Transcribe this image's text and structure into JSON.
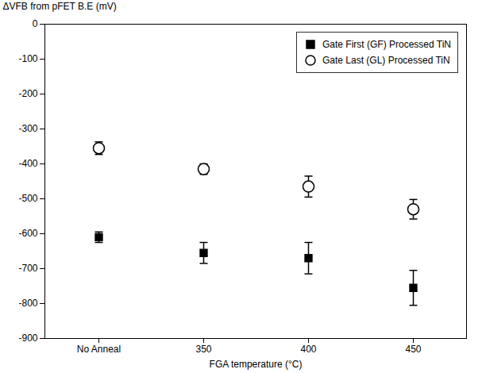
{
  "chart_data": {
    "type": "scatter",
    "xlabel": "FGA temperature (°C)",
    "ylabel": "ΔVFB from pFET B.E (mV)",
    "categories": [
      "No Anneal",
      "350",
      "400",
      "450"
    ],
    "series": [
      {
        "name": "Gate First (GF) Processed TiN",
        "color": "black",
        "marker": "square",
        "values": [
          -610,
          -655,
          -670,
          -755
        ],
        "errors": [
          15,
          30,
          45,
          50
        ]
      },
      {
        "name": "Gate Last (GL) Processed TiN",
        "color": "black",
        "marker": "circle",
        "values": [
          -355,
          -415,
          -465,
          -530
        ],
        "errors": [
          18,
          15,
          30,
          28
        ]
      }
    ],
    "ylim": [
      -900,
      0
    ],
    "yticks": [
      0,
      -100,
      -200,
      -300,
      -400,
      -500,
      -600,
      -700,
      -800,
      -900
    ],
    "grid": false,
    "legend": "upper right"
  }
}
